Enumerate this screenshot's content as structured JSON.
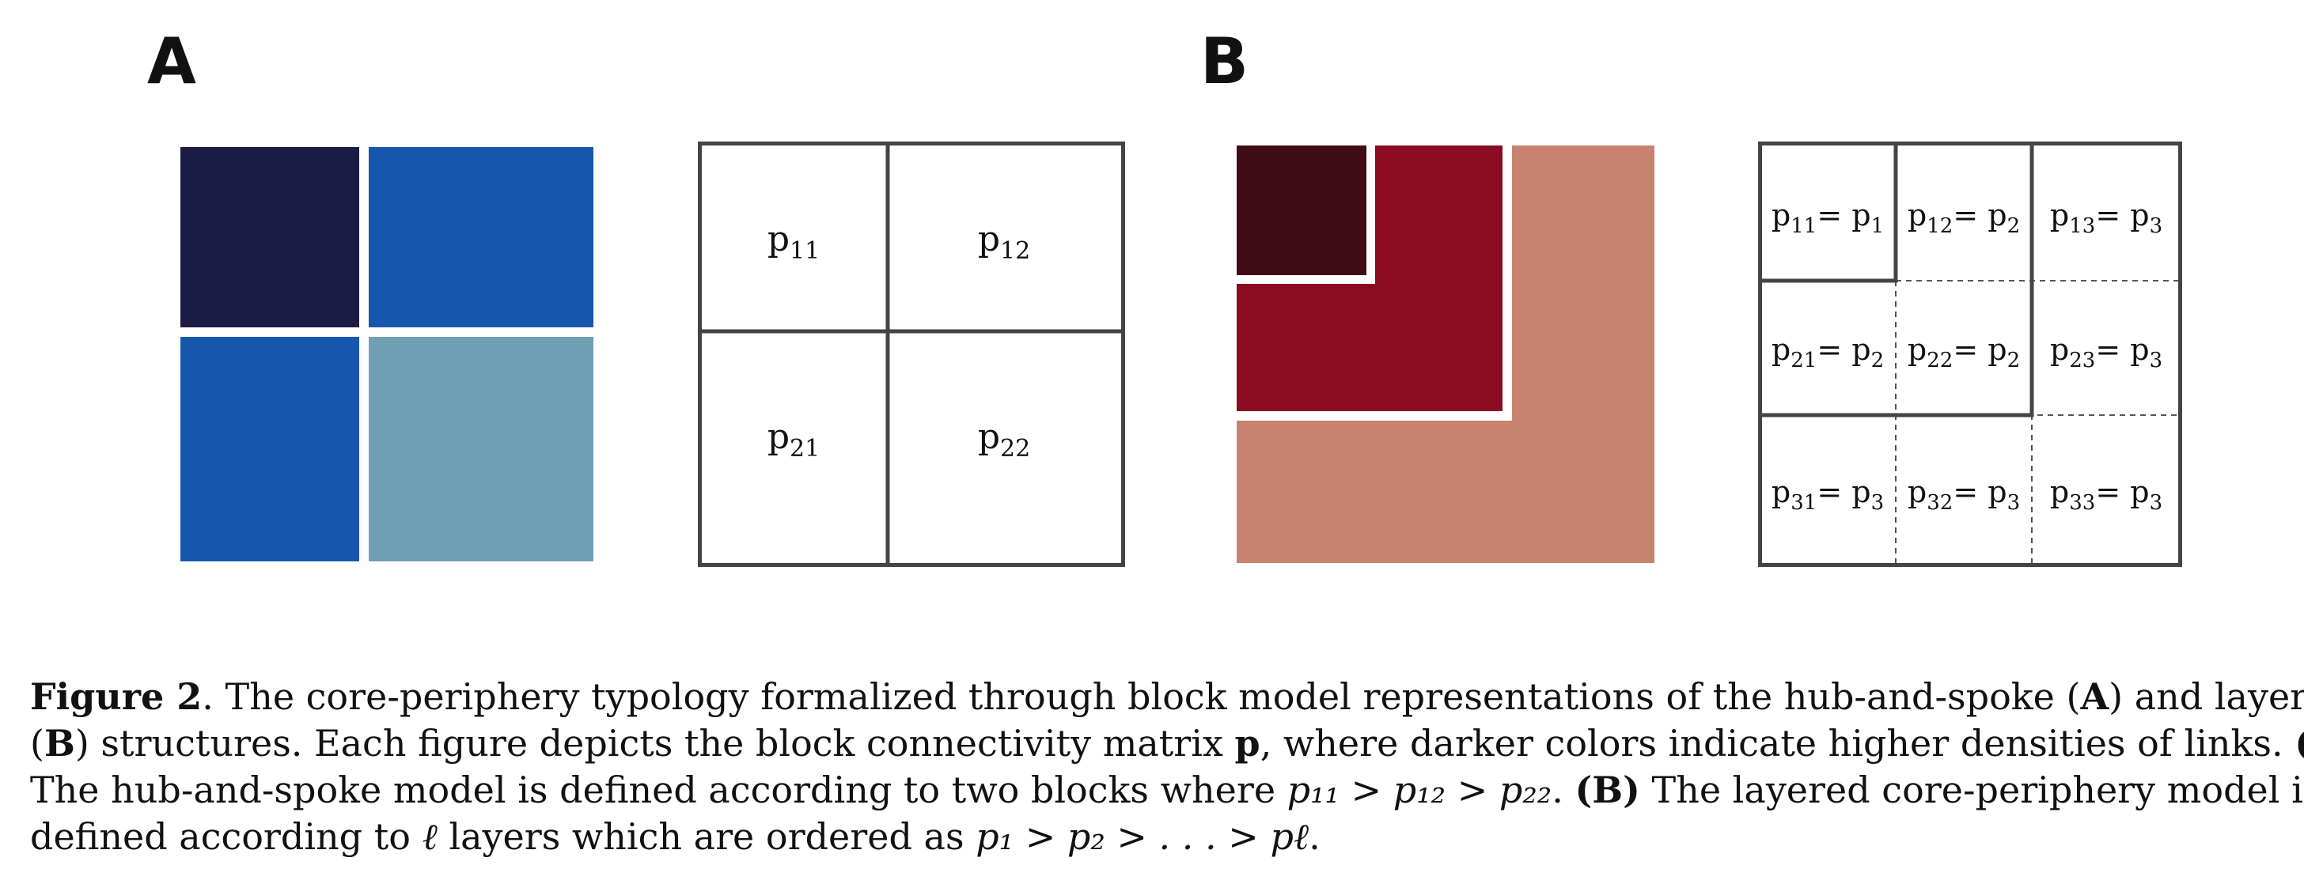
{
  "panels": {
    "a": {
      "label": "A",
      "heatmap_colors": [
        "#1b1c43",
        "#1657ad",
        "#1657ad",
        "#6e9fb2"
      ],
      "matrix_cells": [
        "p11",
        "p12",
        "p21",
        "p22"
      ]
    },
    "b": {
      "label": "B",
      "layer_colors": [
        "#3f0c16",
        "#8b0b20",
        "#c7836f"
      ],
      "matrix_cells": [
        [
          "p11= p1",
          "p12= p2",
          "p13= p3"
        ],
        [
          "p21= p2",
          "p22= p2",
          "p23= p3"
        ],
        [
          "p31= p3",
          "p32= p3",
          "p33= p3"
        ]
      ]
    }
  },
  "caption": {
    "lead": "Figure 2",
    "line1": ". The core-periphery typology formalized through block model representations of the hub-and-spoke (",
    "line1_a": "A",
    "line1_end": ") and layered",
    "line2_start": "(",
    "line2_b": "B",
    "line2": ") structures. Each figure depicts the block connectivity matrix ",
    "line2_p": "p",
    "line2_end": ", where darker colors indicate higher densities of links. ",
    "line2_tag": "(A)",
    "line3": "The hub-and-spoke model is defined according to two blocks where ",
    "line3_math": "p₁₁ > p₁₂ > p₂₂",
    "line3_mid": ". ",
    "line3_tag": "(B)",
    "line3_end": " The layered core-periphery model is",
    "line4": "defined according to ",
    "line4_l": "ℓ",
    "line4_mid": " layers which are ordered as ",
    "line4_math": "p₁ > p₂ > . . . > pℓ",
    "line4_end": "."
  }
}
